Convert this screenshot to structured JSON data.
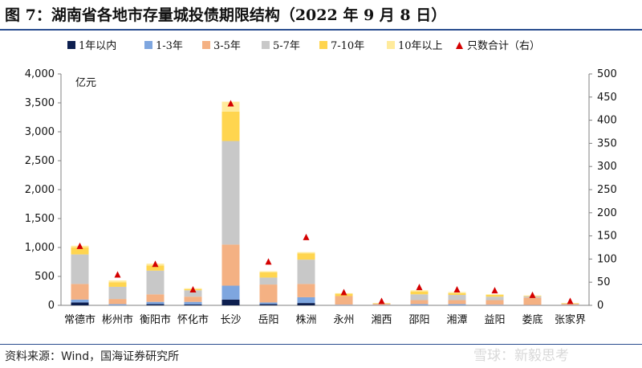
{
  "page": {
    "title": "图 7：湖南省各地市存量城投债期限结构（2022 年 9 月 8 日）",
    "source": "资料来源：Wind，国海证券研究所",
    "watermark": "雪球：新毅思考"
  },
  "colors": {
    "lt1": "#0d1f4f",
    "y1_3": "#7ea6df",
    "y3_5": "#f4b183",
    "y5_7": "#c8c8c8",
    "y7_10": "#ffd54f",
    "y10p": "#ffeb9c",
    "marker": "#d40000",
    "rule": "#2a4d8f"
  },
  "chart_data": {
    "type": "bar",
    "stacked": true,
    "categories": [
      "常德市",
      "彬州市",
      "衡阳市",
      "怀化市",
      "长沙",
      "岳阳",
      "株洲",
      "永州",
      "湘西",
      "邵阳",
      "湘潭",
      "益阳",
      "娄底",
      "张家界"
    ],
    "ylabel": "亿元",
    "ylim": [
      0,
      4000
    ],
    "y_ticks": [
      "0",
      "500",
      "1,000",
      "1,500",
      "2,000",
      "2,500",
      "3,000",
      "3,500",
      "4,000"
    ],
    "y2lim": [
      0,
      500
    ],
    "y2_ticks": [
      "0",
      "50",
      "100",
      "150",
      "200",
      "250",
      "300",
      "350",
      "400",
      "450",
      "500"
    ],
    "legend_position": "top",
    "grid": false,
    "series": [
      {
        "name": "1年以内",
        "color_key": "lt1",
        "values": [
          50,
          0,
          20,
          15,
          100,
          20,
          40,
          0,
          0,
          0,
          0,
          0,
          0,
          0
        ]
      },
      {
        "name": "1-3年",
        "color_key": "y1_3",
        "values": [
          50,
          20,
          40,
          45,
          240,
          30,
          100,
          10,
          5,
          20,
          20,
          10,
          5,
          5
        ]
      },
      {
        "name": "3-5年",
        "color_key": "y3_5",
        "values": [
          270,
          90,
          130,
          90,
          710,
          310,
          230,
          150,
          20,
          70,
          70,
          80,
          130,
          20
        ]
      },
      {
        "name": "5-7年",
        "color_key": "y5_7",
        "values": [
          510,
          210,
          410,
          110,
          1790,
          120,
          420,
          0,
          5,
          100,
          90,
          60,
          20,
          5
        ]
      },
      {
        "name": "7-10年",
        "color_key": "y7_10",
        "values": [
          120,
          80,
          90,
          20,
          510,
          90,
          110,
          40,
          5,
          50,
          30,
          30,
          10,
          5
        ]
      },
      {
        "name": "10年以上",
        "color_key": "y10p",
        "values": [
          30,
          30,
          30,
          15,
          170,
          20,
          20,
          10,
          5,
          20,
          20,
          10,
          5,
          5
        ]
      }
    ],
    "count_series": {
      "name": "只数合计（右）",
      "values": [
        127,
        65,
        88,
        33,
        435,
        93,
        146,
        27,
        8,
        38,
        33,
        31,
        21,
        8
      ]
    }
  }
}
